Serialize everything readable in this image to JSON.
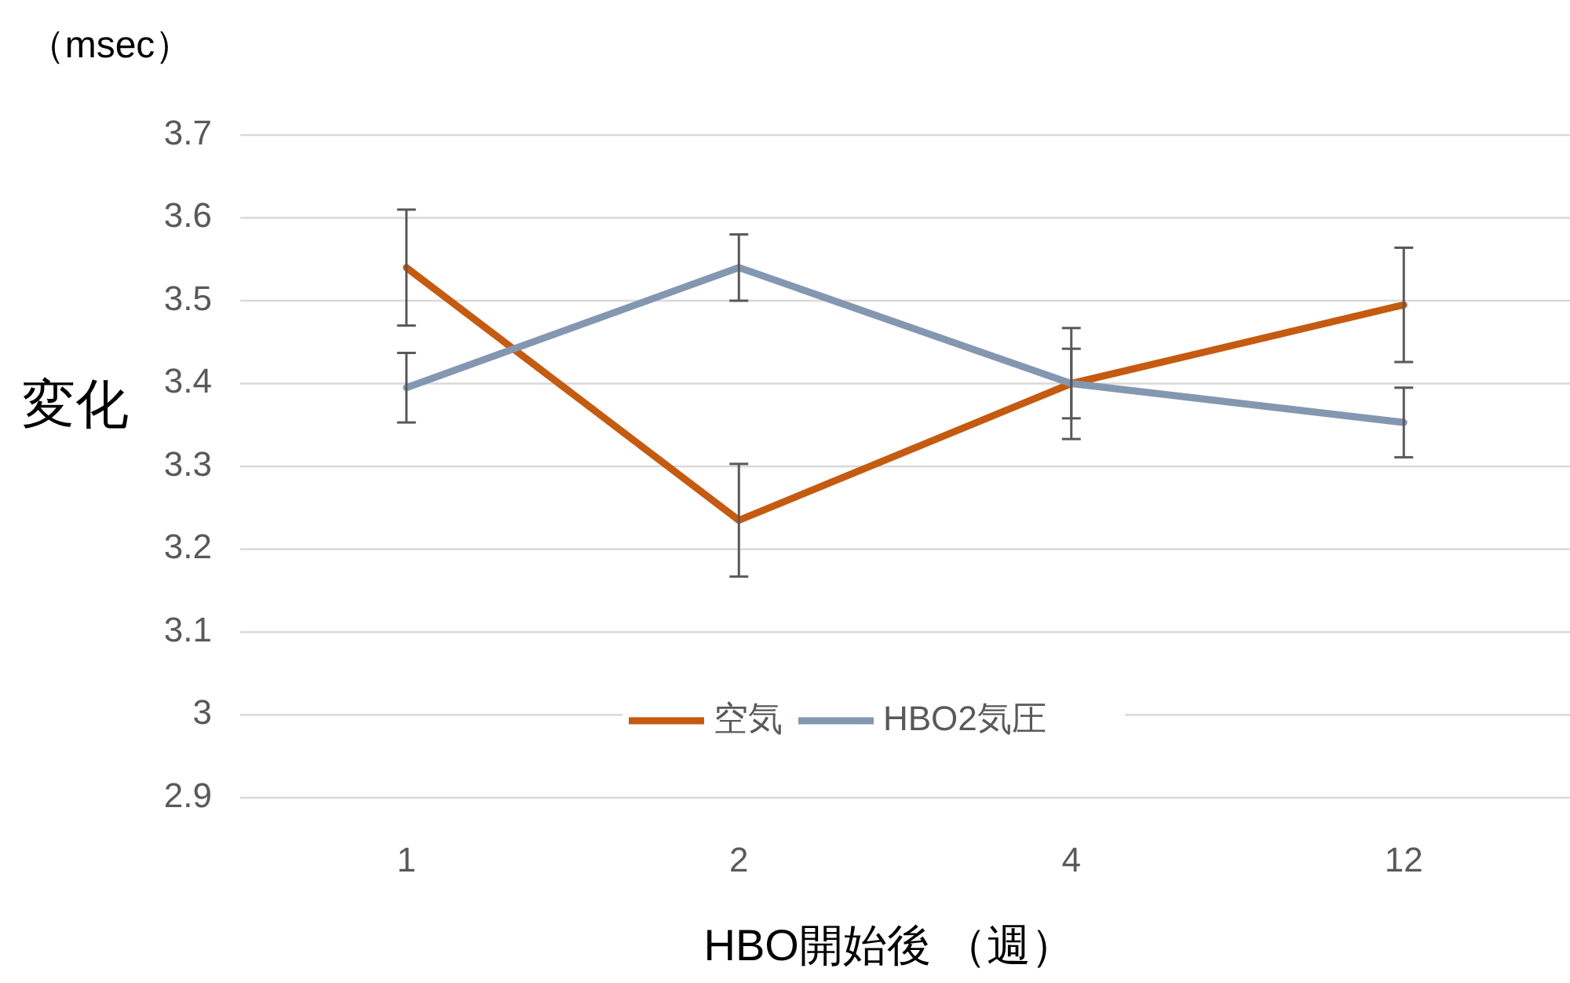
{
  "chart_data": {
    "type": "line",
    "xlabel": "HBO開始後 （週）",
    "ylabel": "変化",
    "annotations": [
      "（msec）"
    ],
    "categories": [
      "1",
      "2",
      "4",
      "12"
    ],
    "series": [
      {
        "name": "空気",
        "color": "#c55a11",
        "values": [
          3.54,
          3.235,
          3.4,
          3.495
        ],
        "errors": [
          0.07,
          0.068,
          0.067,
          0.069
        ]
      },
      {
        "name": "HBO2気圧",
        "color": "#8497b0",
        "values": [
          3.395,
          3.54,
          3.4,
          3.353
        ],
        "errors": [
          0.042,
          0.04,
          0.042,
          0.042
        ]
      }
    ],
    "ylim": [
      2.9,
      3.7
    ],
    "yticks": [
      2.9,
      3,
      3.1,
      3.2,
      3.3,
      3.4,
      3.5,
      3.6,
      3.7
    ],
    "grid": "y",
    "legend": "bottom",
    "marker": "none",
    "line_style": "solid"
  }
}
